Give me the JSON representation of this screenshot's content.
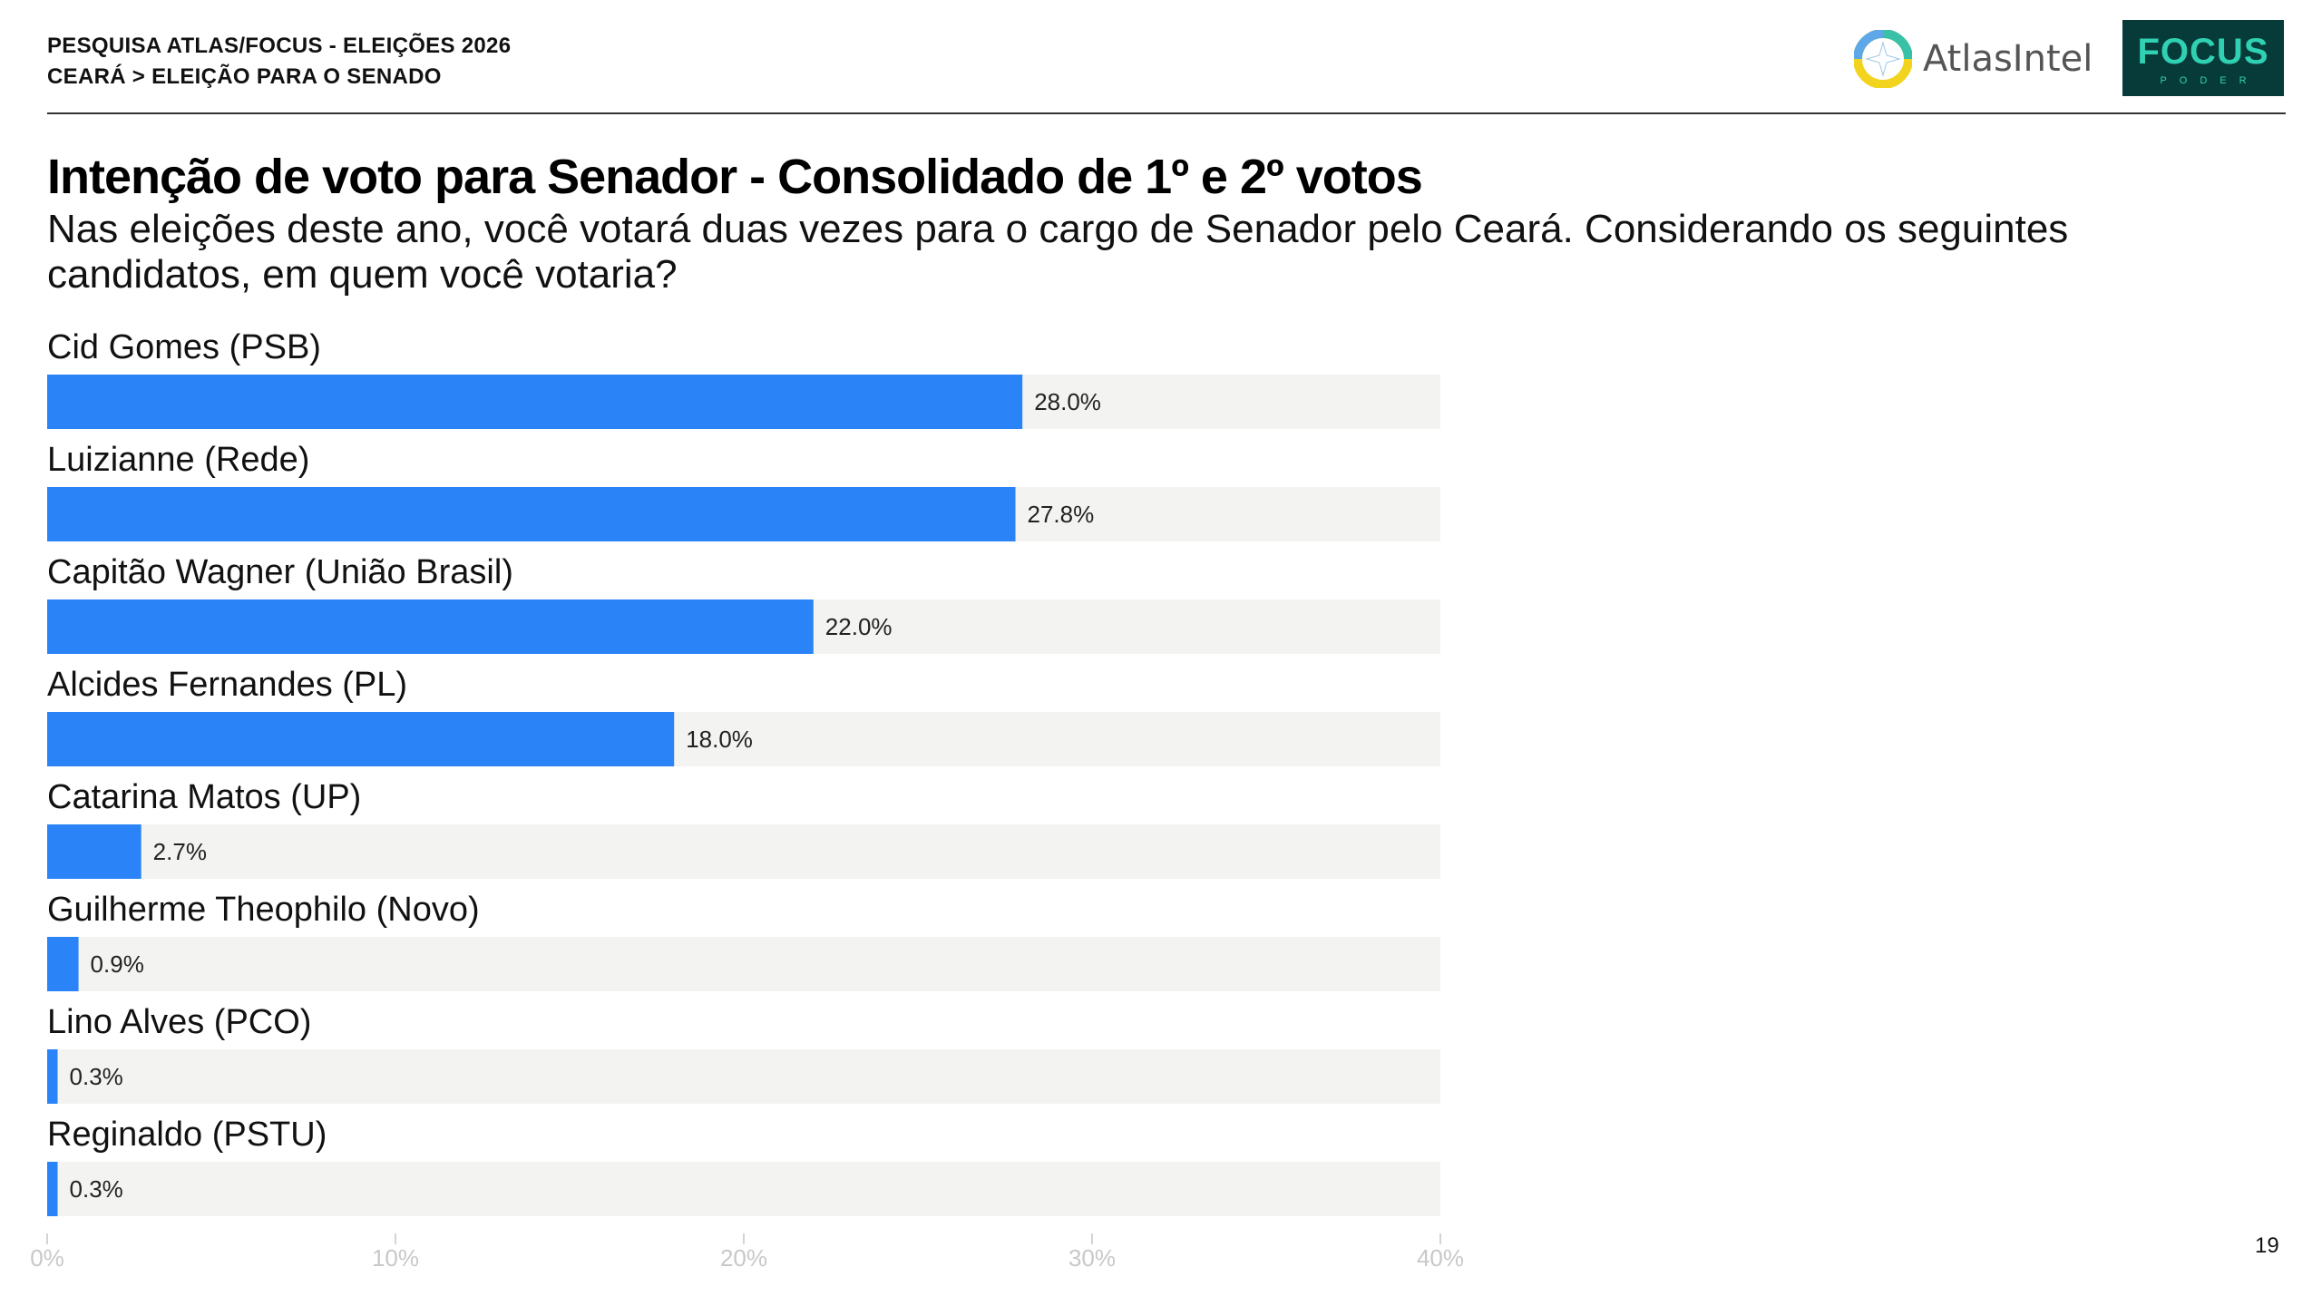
{
  "header": {
    "line1": "PESQUISA ATLAS/FOCUS - ELEIÇÕES 2026",
    "line2": "CEARÁ > ELEIÇÃO PARA O SENADO"
  },
  "logos": {
    "atlas": "AtlasIntel",
    "focus_main": "FOCUS",
    "focus_sub": "PODER"
  },
  "page_number": "19",
  "colors": {
    "bar": "#2a84f7",
    "track": "#f3f3f1",
    "tick_label": "#c8c8c8"
  },
  "chart_data": {
    "type": "bar",
    "orientation": "horizontal",
    "title": "Intenção de voto para Senador - Consolidado de 1º e 2º votos",
    "subtitle": "Nas eleições deste ano, você votará duas vezes para o cargo de Senador pelo Ceará. Considerando os seguintes candidatos, em quem você votaria?",
    "categories": [
      "Cid Gomes (PSB)",
      "Luizianne (Rede)",
      "Capitão Wagner (União Brasil)",
      "Alcides Fernandes (PL)",
      "Catarina Matos (UP)",
      "Guilherme Theophilo (Novo)",
      "Lino Alves (PCO)",
      "Reginaldo (PSTU)"
    ],
    "values": [
      28.0,
      27.8,
      22.0,
      18.0,
      2.7,
      0.9,
      0.3,
      0.3
    ],
    "value_labels": [
      "28.0%",
      "27.8%",
      "22.0%",
      "18.0%",
      "2.7%",
      "0.9%",
      "0.3%",
      "0.3%"
    ],
    "xlim": [
      0,
      40
    ],
    "x_ticks": [
      0,
      10,
      20,
      30,
      40
    ],
    "x_tick_labels": [
      "0%",
      "10%",
      "20%",
      "30%",
      "40%"
    ],
    "grid": false,
    "legend": "none"
  }
}
